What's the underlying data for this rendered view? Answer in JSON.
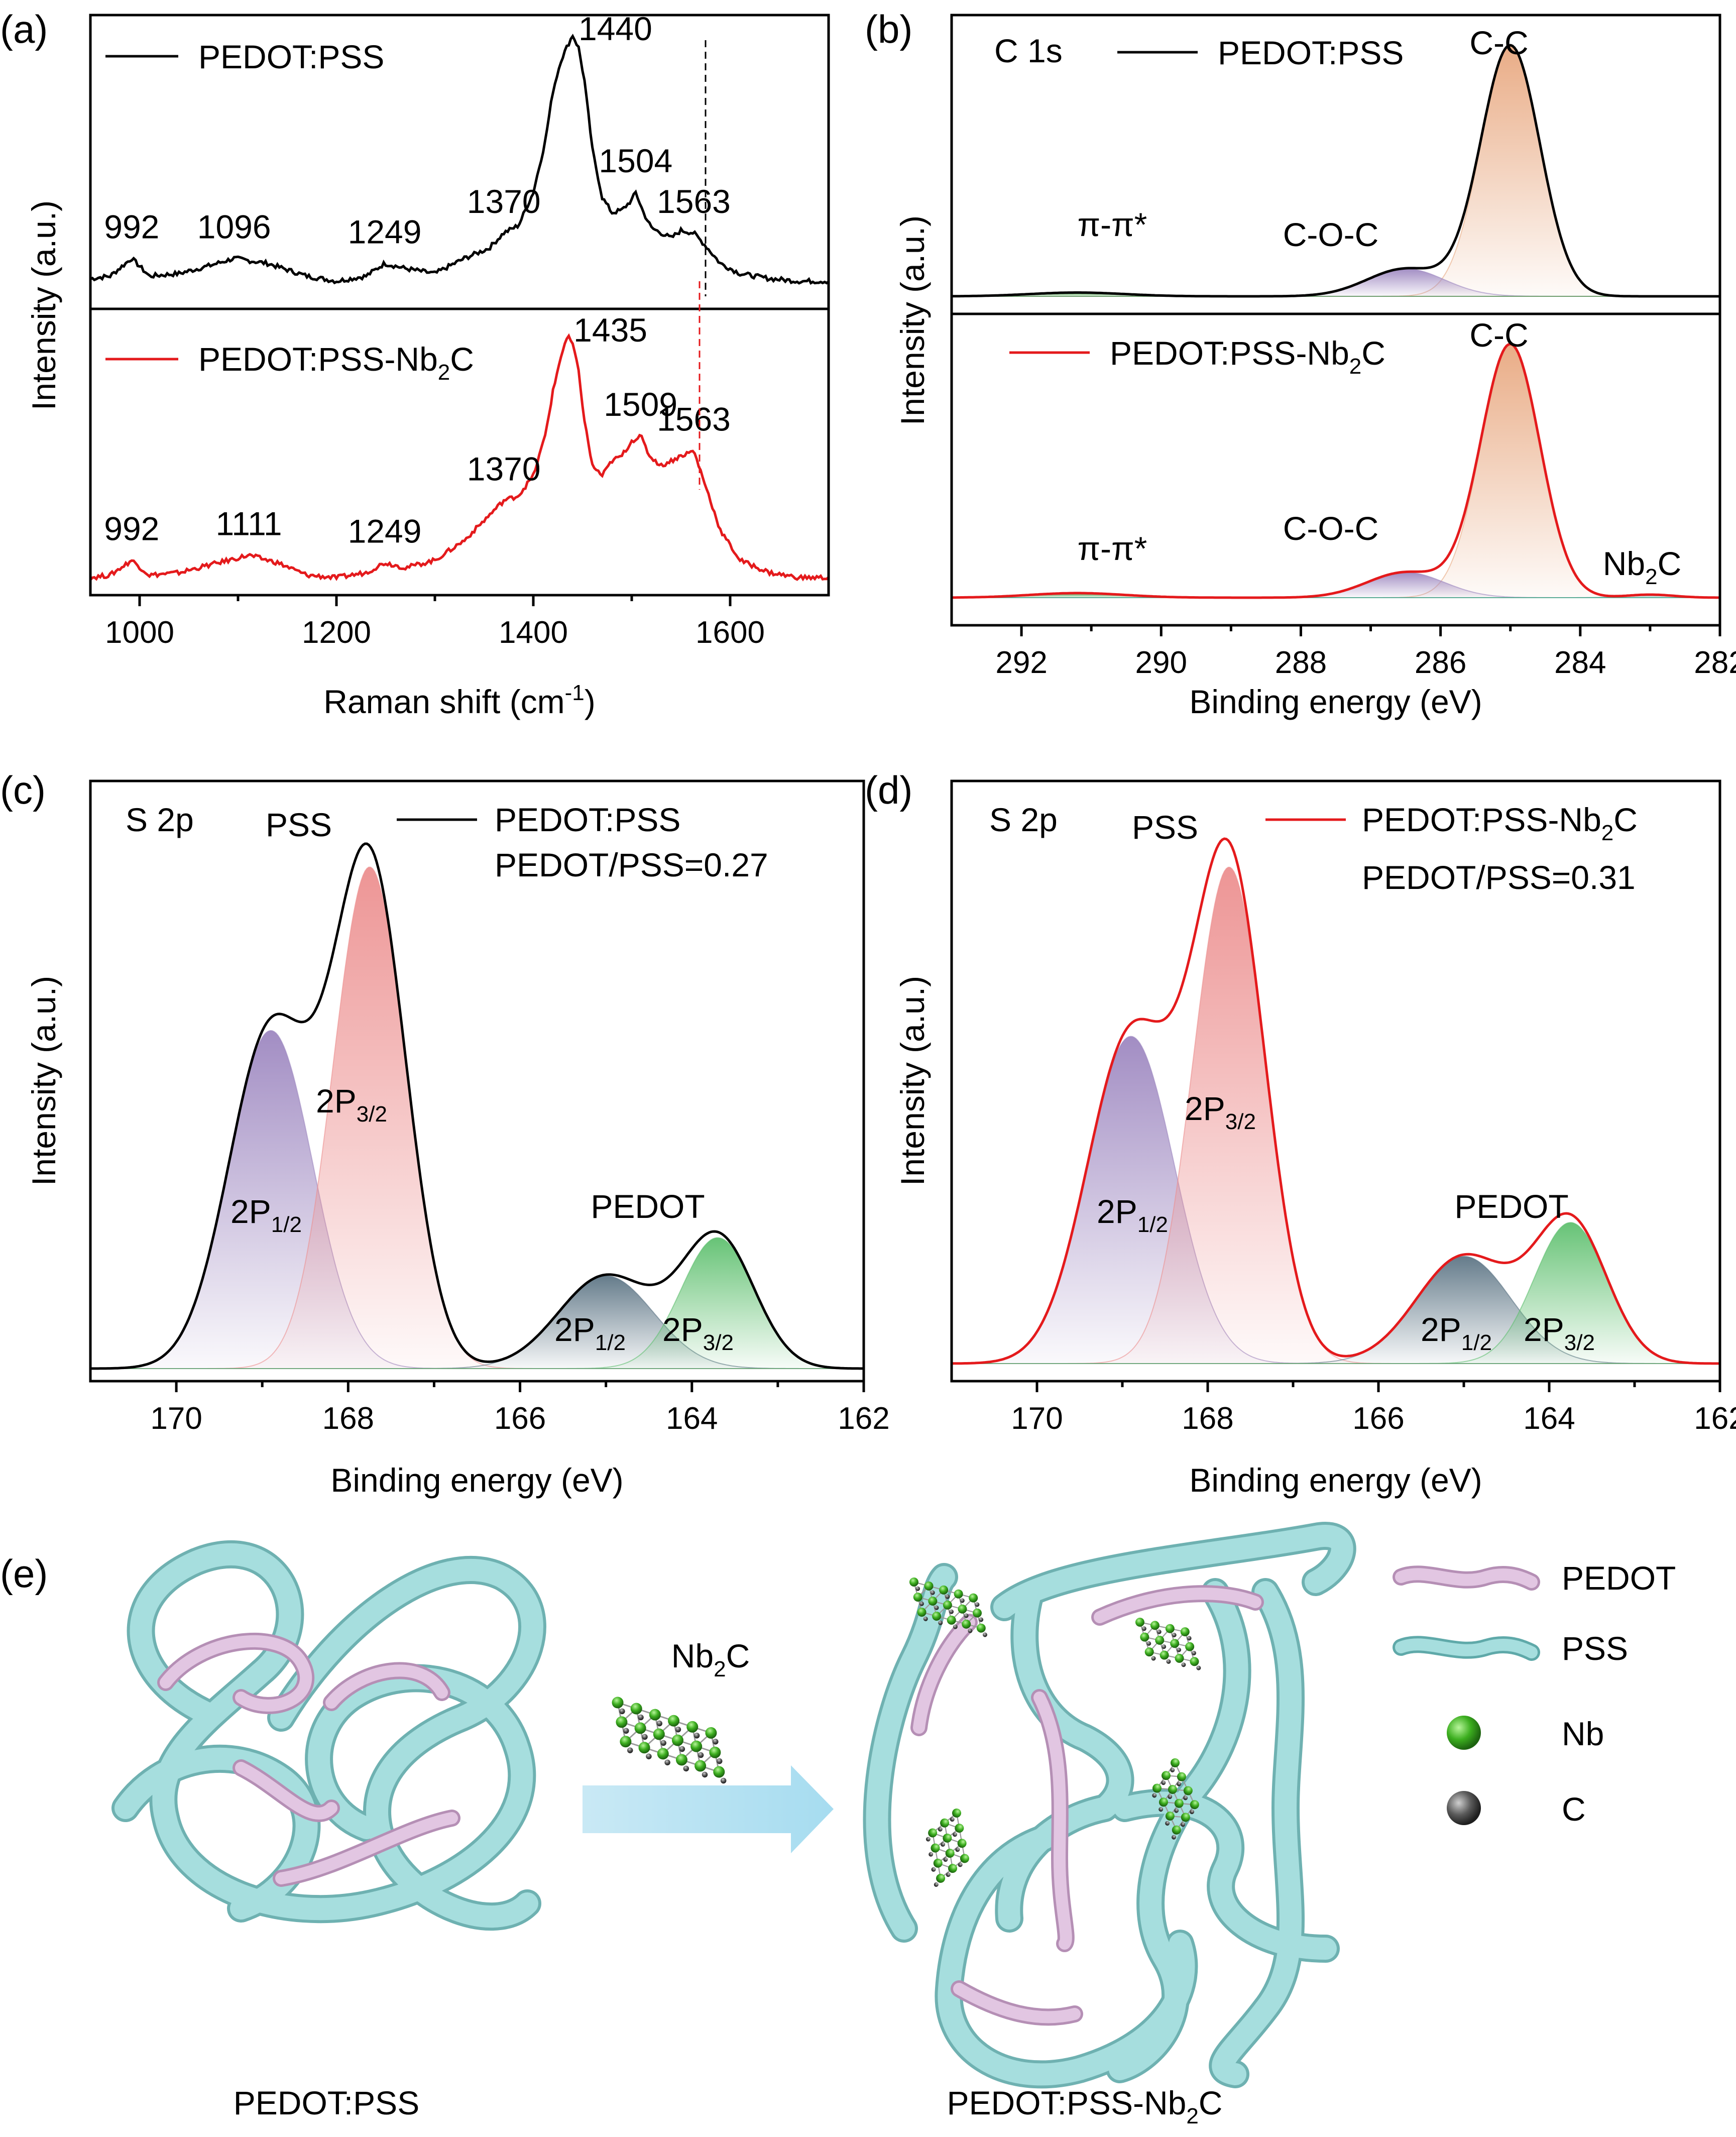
{
  "panels": {
    "a": {
      "label": "(a)"
    },
    "b": {
      "label": "(b)"
    },
    "c": {
      "label": "(c)"
    },
    "d": {
      "label": "(d)"
    },
    "e": {
      "label": "(e)"
    }
  },
  "colors": {
    "black_series": "#000000",
    "red_series": "#e41a1c",
    "pss": "#8fd6d6",
    "pedot": "#d7b4d7",
    "nb": "#3cae1f",
    "c": "#3c3c3c"
  },
  "chart_data": [
    {
      "id": "a",
      "type": "line",
      "xlabel": "Raman shift (cm",
      "xlabel_sup": "-1",
      "xlabel_end": ")",
      "ylabel": "Intensity (a.u.)",
      "xlim": [
        950,
        1700
      ],
      "xticks": [
        1000,
        1200,
        1400,
        1600
      ],
      "series": [
        {
          "name": "PEDOT:PSS",
          "color": "#000000",
          "x": [
            950,
            970,
            992,
            1010,
            1040,
            1070,
            1096,
            1130,
            1170,
            1200,
            1230,
            1249,
            1270,
            1300,
            1330,
            1355,
            1370,
            1385,
            1400,
            1412,
            1420,
            1428,
            1435,
            1440,
            1446,
            1452,
            1460,
            1470,
            1480,
            1490,
            1500,
            1504,
            1512,
            1520,
            1530,
            1540,
            1550,
            1563,
            1575,
            1590,
            1610,
            1640,
            1670,
            1700
          ],
          "y": [
            0.04,
            0.05,
            0.12,
            0.05,
            0.06,
            0.09,
            0.12,
            0.1,
            0.05,
            0.03,
            0.05,
            0.1,
            0.08,
            0.06,
            0.12,
            0.16,
            0.22,
            0.25,
            0.38,
            0.58,
            0.78,
            0.9,
            0.96,
            1.0,
            0.95,
            0.82,
            0.55,
            0.36,
            0.3,
            0.31,
            0.35,
            0.38,
            0.3,
            0.24,
            0.22,
            0.2,
            0.23,
            0.22,
            0.17,
            0.1,
            0.06,
            0.04,
            0.03,
            0.03
          ],
          "peak_labels": [
            992,
            1096,
            1249,
            1370,
            1440,
            1504,
            1563
          ]
        },
        {
          "name": "PEDOT:PSS-Nb",
          "name_sub": "2",
          "name_end": "C",
          "color": "#e41a1c",
          "x": [
            950,
            970,
            992,
            1010,
            1040,
            1070,
            1111,
            1140,
            1170,
            1200,
            1230,
            1249,
            1270,
            1300,
            1330,
            1350,
            1370,
            1385,
            1400,
            1412,
            1420,
            1428,
            1432,
            1435,
            1440,
            1446,
            1452,
            1460,
            1470,
            1480,
            1490,
            1500,
            1509,
            1518,
            1530,
            1540,
            1550,
            1563,
            1575,
            1590,
            1610,
            1640,
            1670,
            1700
          ],
          "y": [
            0.03,
            0.04,
            0.1,
            0.04,
            0.05,
            0.08,
            0.12,
            0.09,
            0.04,
            0.03,
            0.05,
            0.09,
            0.07,
            0.1,
            0.18,
            0.26,
            0.34,
            0.36,
            0.44,
            0.6,
            0.78,
            0.92,
            0.97,
            1.0,
            0.97,
            0.86,
            0.66,
            0.48,
            0.44,
            0.5,
            0.52,
            0.58,
            0.6,
            0.52,
            0.48,
            0.5,
            0.52,
            0.54,
            0.4,
            0.22,
            0.1,
            0.05,
            0.03,
            0.03
          ],
          "peak_labels": [
            992,
            1111,
            1249,
            1370,
            1435,
            1509,
            1563
          ]
        }
      ]
    },
    {
      "id": "b",
      "type": "area",
      "xlabel": "Binding energy (eV)",
      "ylabel": "Intensity (a.u.)",
      "xlim": [
        293,
        282
      ],
      "xticks": [
        292,
        290,
        288,
        286,
        284,
        282
      ],
      "series": [
        {
          "name": "PEDOT:PSS",
          "title": "C 1s",
          "color": "#000000",
          "components": [
            {
              "label": "C-C",
              "center": 285.0,
              "height": 1.0,
              "fwhm": 1.0,
              "color": "#e8a880"
            },
            {
              "label": "C-O-C",
              "center": 286.5,
              "height": 0.11,
              "fwhm": 1.3,
              "color": "#9d87c0"
            },
            {
              "label": "π-π*",
              "center": 291.2,
              "height": 0.015,
              "fwhm": 1.6,
              "color": "#3a9a3a"
            }
          ]
        },
        {
          "name": "PEDOT:PSS-Nb",
          "name_sub": "2",
          "name_end": "C",
          "color": "#e41a1c",
          "components": [
            {
              "label": "C-C",
              "center": 285.0,
              "height": 1.0,
              "fwhm": 1.0,
              "color": "#e8a880"
            },
            {
              "label": "C-O-C",
              "center": 286.5,
              "height": 0.1,
              "fwhm": 1.3,
              "color": "#9d87c0"
            },
            {
              "label": "π-π*",
              "center": 291.2,
              "height": 0.018,
              "fwhm": 1.6,
              "color": "#3a9a3a"
            },
            {
              "label": "Nb",
              "label_sub": "2",
              "label_end": "C",
              "center": 283.0,
              "height": 0.012,
              "fwhm": 0.8,
              "color": "#4fb6b0"
            }
          ]
        }
      ]
    },
    {
      "id": "c",
      "type": "area",
      "xlabel": "Binding energy (eV)",
      "ylabel": "Intensity (a.u.)",
      "title": "S 2p",
      "legend": "PEDOT:PSS",
      "ratio_text": "PEDOT/PSS=0.27",
      "xlim": [
        171,
        162
      ],
      "xticks": [
        170,
        168,
        166,
        164,
        162
      ],
      "color": "#000000",
      "components": [
        {
          "label": "2P",
          "label_sub": "1/2",
          "group": "PSS",
          "center": 168.9,
          "height": 0.62,
          "fwhm": 1.15,
          "color": "#9d87c0"
        },
        {
          "label": "2P",
          "label_sub": "3/2",
          "group": "PSS",
          "center": 167.75,
          "height": 0.92,
          "fwhm": 1.0,
          "color": "#ec8f8f"
        },
        {
          "label": "2P",
          "label_sub": "1/2",
          "group": "PEDOT",
          "center": 165.0,
          "height": 0.17,
          "fwhm": 1.3,
          "color": "#5d7585"
        },
        {
          "label": "2P",
          "label_sub": "3/2",
          "group": "PEDOT",
          "center": 163.7,
          "height": 0.24,
          "fwhm": 1.0,
          "color": "#5fc06f"
        }
      ],
      "group_labels": [
        "PSS",
        "PEDOT"
      ]
    },
    {
      "id": "d",
      "type": "area",
      "xlabel": "Binding energy (eV)",
      "ylabel": "Intensity (a.u.)",
      "title": "S 2p",
      "legend": "PEDOT:PSS-Nb",
      "legend_sub": "2",
      "legend_end": "C",
      "ratio_text": "PEDOT/PSS=0.31",
      "xlim": [
        171,
        162
      ],
      "xticks": [
        170,
        168,
        166,
        164,
        162
      ],
      "color": "#e41a1c",
      "components": [
        {
          "label": "2P",
          "label_sub": "1/2",
          "group": "PSS",
          "center": 168.9,
          "height": 0.58,
          "fwhm": 1.2,
          "color": "#9d87c0"
        },
        {
          "label": "2P",
          "label_sub": "3/2",
          "group": "PSS",
          "center": 167.75,
          "height": 0.88,
          "fwhm": 1.0,
          "color": "#ec8f8f"
        },
        {
          "label": "2P",
          "label_sub": "1/2",
          "group": "PEDOT",
          "center": 165.0,
          "height": 0.19,
          "fwhm": 1.3,
          "color": "#5d7585"
        },
        {
          "label": "2P",
          "label_sub": "3/2",
          "group": "PEDOT",
          "center": 163.75,
          "height": 0.25,
          "fwhm": 1.0,
          "color": "#5fc06f"
        }
      ],
      "group_labels": [
        "PSS",
        "PEDOT"
      ]
    }
  ],
  "schematic": {
    "left_caption": "PEDOT:PSS",
    "right_caption": "PEDOT:PSS-Nb",
    "right_caption_sub": "2",
    "right_caption_end": "C",
    "arrow_label": "Nb",
    "arrow_label_sub": "2",
    "arrow_label_end": "C",
    "legend": [
      {
        "label": "PEDOT",
        "icon": "pink-tube-icon"
      },
      {
        "label": "PSS",
        "icon": "cyan-tube-icon"
      },
      {
        "label": "Nb",
        "icon": "green-sphere-icon"
      },
      {
        "label": "C",
        "icon": "gray-sphere-icon"
      }
    ]
  }
}
